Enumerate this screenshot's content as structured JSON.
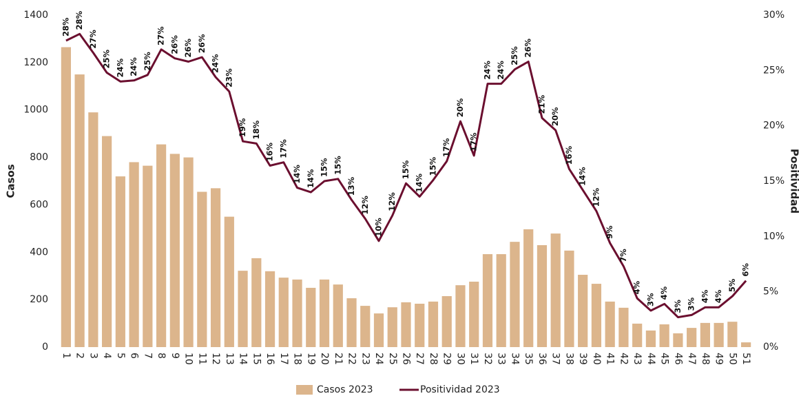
{
  "chart_data": {
    "type": "bar",
    "y_label": "Casos",
    "y2_label": "Positividad",
    "categories": [
      "1",
      "2",
      "3",
      "4",
      "5",
      "6",
      "7",
      "8",
      "9",
      "10",
      "11",
      "12",
      "13",
      "14",
      "15",
      "16",
      "17",
      "18",
      "19",
      "20",
      "21",
      "22",
      "23",
      "24",
      "25",
      "26",
      "27",
      "28",
      "29",
      "30",
      "31",
      "32",
      "33",
      "34",
      "35",
      "36",
      "37",
      "38",
      "39",
      "40",
      "41",
      "42",
      "43",
      "44",
      "45",
      "46",
      "47",
      "48",
      "49",
      "50",
      "51"
    ],
    "series": [
      {
        "name": "Casos 2023",
        "type": "bar",
        "color": "#dcb58c",
        "values": [
          1265,
          1150,
          990,
          890,
          720,
          780,
          765,
          855,
          815,
          800,
          655,
          670,
          550,
          322,
          375,
          320,
          293,
          285,
          250,
          285,
          264,
          206,
          174,
          142,
          168,
          189,
          183,
          192,
          215,
          261,
          276,
          392,
          392,
          444,
          497,
          430,
          479,
          407,
          305,
          267,
          192,
          166,
          99,
          70,
          96,
          58,
          81,
          102,
          102,
          107,
          20
        ]
      },
      {
        "name": "Positividad 2023",
        "type": "line",
        "axis": "y2",
        "color": "#6b0f2f",
        "values": [
          27.7,
          28.3,
          26.6,
          24.8,
          24.0,
          24.1,
          24.6,
          26.9,
          26.1,
          25.8,
          26.2,
          24.4,
          23.1,
          18.6,
          18.4,
          16.4,
          16.7,
          14.4,
          14.0,
          15.0,
          15.2,
          13.3,
          11.6,
          9.6,
          11.9,
          14.8,
          13.6,
          15.1,
          16.8,
          20.4,
          17.3,
          23.8,
          23.8,
          25.1,
          25.8,
          20.7,
          19.6,
          16.1,
          14.2,
          12.3,
          9.4,
          7.3,
          4.4,
          3.3,
          3.9,
          2.7,
          2.9,
          3.6,
          3.6,
          4.6,
          6.0
        ],
        "value_labels": [
          "28%",
          "28%",
          "27%",
          "25%",
          "24%",
          "24%",
          "25%",
          "27%",
          "26%",
          "26%",
          "26%",
          "24%",
          "23%",
          "19%",
          "18%",
          "16%",
          "17%",
          "14%",
          "14%",
          "15%",
          "15%",
          "13%",
          "12%",
          "10%",
          "12%",
          "15%",
          "14%",
          "15%",
          "17%",
          "20%",
          "17%",
          "24%",
          "24%",
          "25%",
          "26%",
          "21%",
          "20%",
          "16%",
          "14%",
          "12%",
          "9%",
          "7%",
          "4%",
          "3%",
          "4%",
          "3%",
          "3%",
          "4%",
          "4%",
          "5%",
          "6%"
        ]
      }
    ],
    "ylim": [
      0,
      1400
    ],
    "yticks": [
      0,
      200,
      400,
      600,
      800,
      1000,
      1200,
      1400
    ],
    "y2lim": [
      0,
      30
    ],
    "y2ticks": [
      {
        "value": 0,
        "label": "0%"
      },
      {
        "value": 5,
        "label": "5%"
      },
      {
        "value": 10,
        "label": "10%"
      },
      {
        "value": 15,
        "label": "15%"
      },
      {
        "value": 20,
        "label": "20%"
      },
      {
        "value": 25,
        "label": "25%"
      },
      {
        "value": 30,
        "label": "30%"
      }
    ],
    "grid": false,
    "legend": "bottom"
  }
}
